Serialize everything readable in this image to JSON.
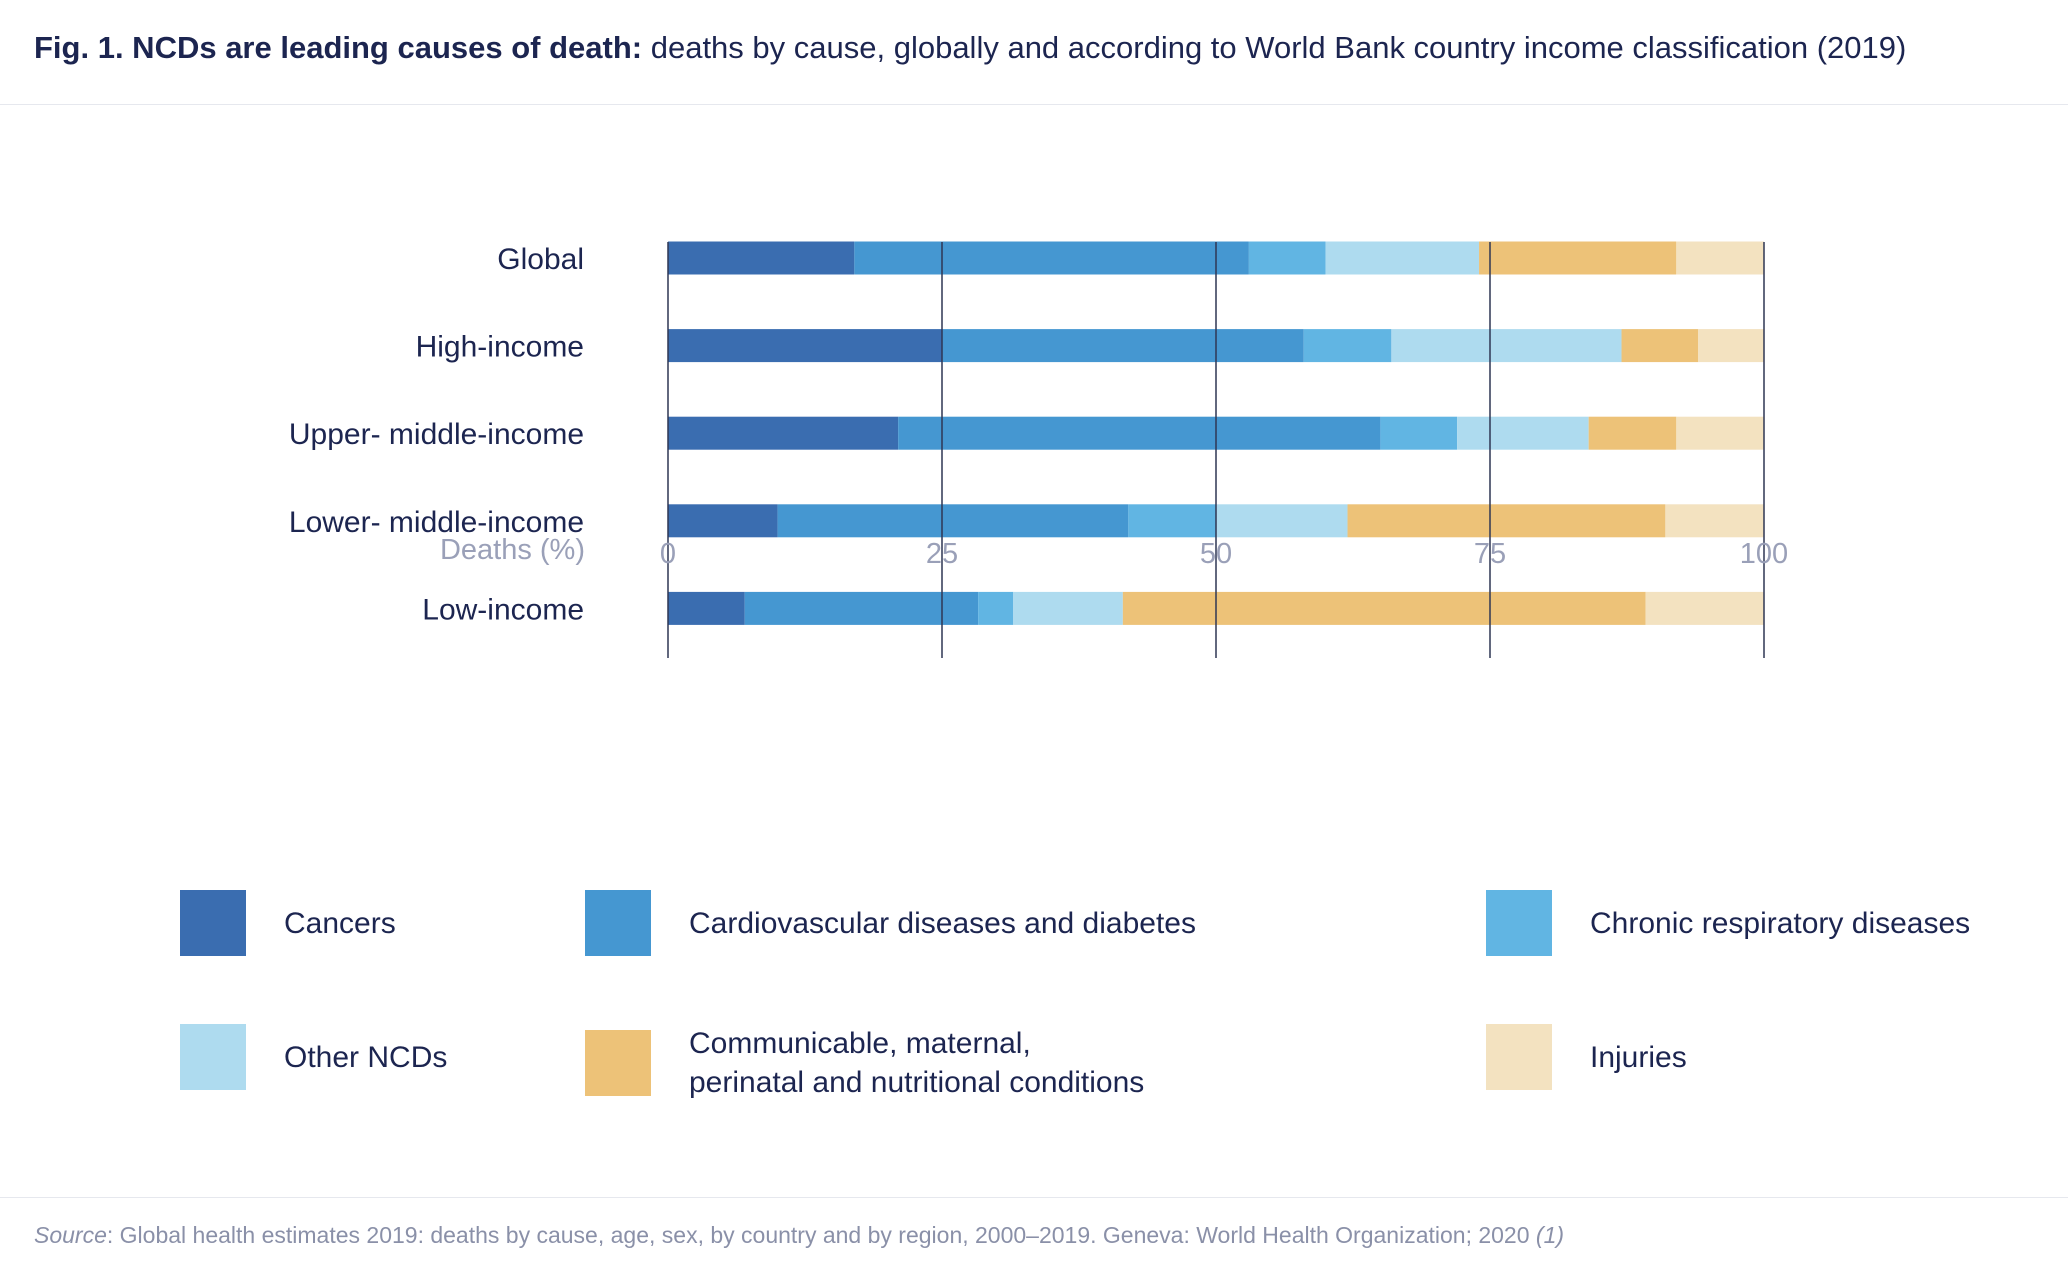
{
  "header": {
    "title_bold": "Fig. 1. NCDs are leading causes of death:",
    "title_rest": " deaths by cause, globally and according to World Bank country income classification (2019)"
  },
  "chart_data": {
    "type": "bar",
    "orientation": "horizontal",
    "stacked": true,
    "categories": [
      "Global",
      "High-income",
      "Upper- middle-income",
      "Lower- middle-income",
      "Low-income"
    ],
    "series": [
      {
        "name": "Cancers",
        "color": "#3a6db0",
        "values": [
          17,
          25,
          21,
          10,
          7
        ]
      },
      {
        "name": "Cardiovascular diseases and diabetes",
        "color": "#4597d1",
        "values": [
          36,
          33,
          44,
          32,
          21.3
        ]
      },
      {
        "name": "Chronic respiratory diseases",
        "color": "#61b5e3",
        "values": [
          7,
          8,
          7,
          8,
          3.2
        ]
      },
      {
        "name": "Other NCDs",
        "color": "#aedbef",
        "values": [
          14,
          21,
          12,
          12,
          10
        ]
      },
      {
        "name": "Communicable, maternal,\nperinatal and nutritional conditions",
        "color": "#edc278",
        "values": [
          18,
          7,
          8,
          29,
          47.7
        ]
      },
      {
        "name": "Injuries",
        "color": "#f3e2c0",
        "values": [
          8,
          6,
          8,
          9,
          10.8
        ]
      }
    ],
    "xlabel": "Deaths (%)",
    "xticks": [
      0,
      25,
      50,
      75,
      100
    ],
    "xlim": [
      0,
      100
    ],
    "grid": true
  },
  "source": {
    "label": "Source",
    "text": ": Global health estimates 2019: deaths by cause, age, sex, by country and by region, 2000–2019. Geneva: World Health Organization; 2020 ",
    "ref": "(1)"
  }
}
